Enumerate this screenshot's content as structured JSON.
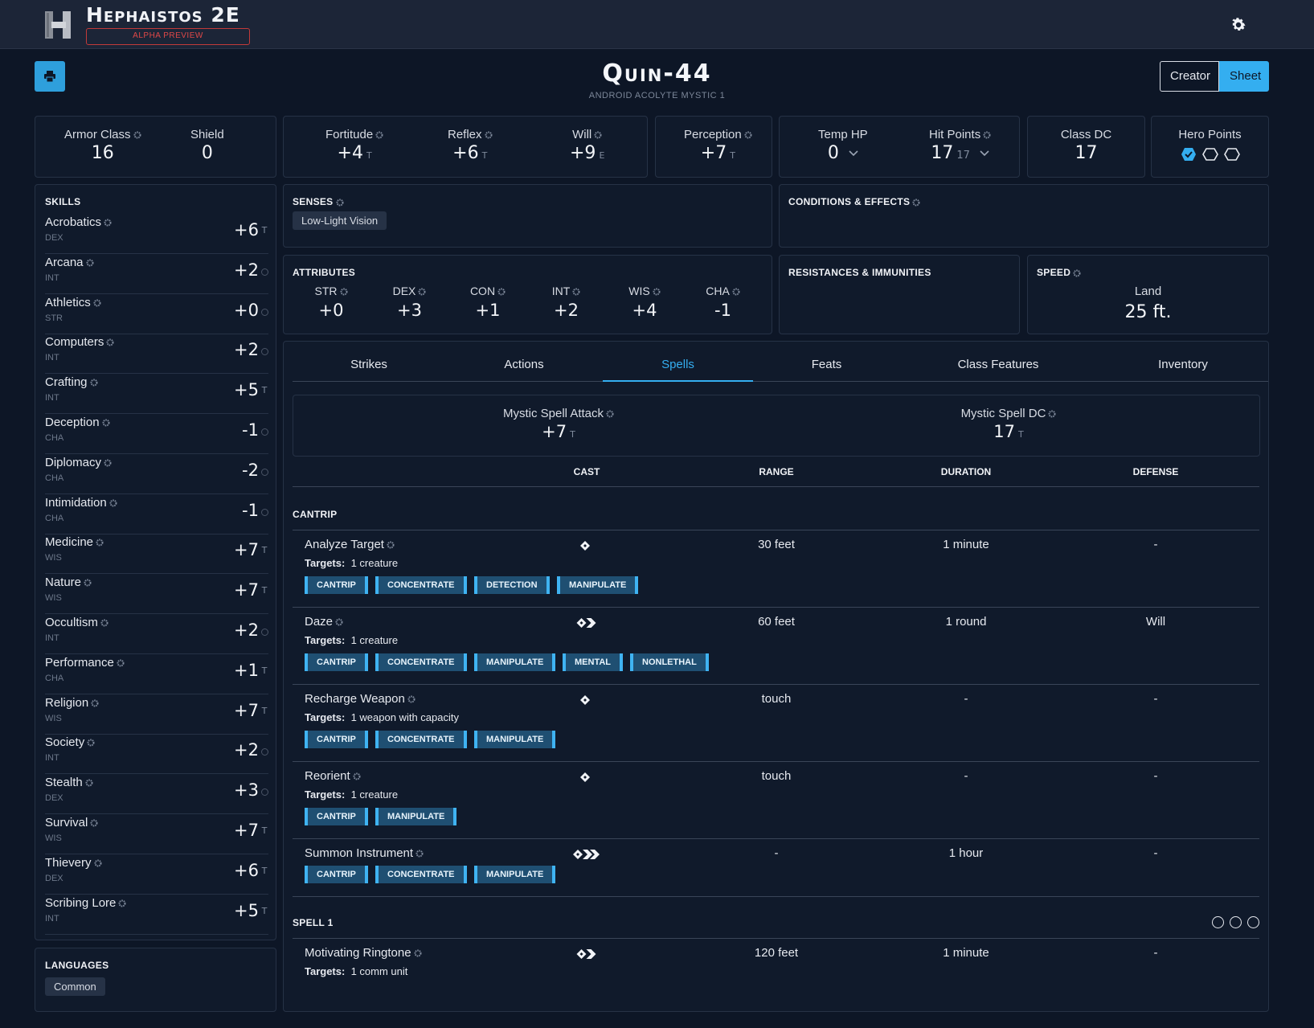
{
  "app": {
    "title": "Hephaistos 2E",
    "badge": "ALPHA PREVIEW"
  },
  "header": {
    "name": "Quin-44",
    "subtitle": "ANDROID ACOLYTE MYSTIC 1",
    "mode_creator": "Creator",
    "mode_sheet": "Sheet"
  },
  "defense": {
    "armor_class_label": "Armor Class",
    "armor_class": "16",
    "shield_label": "Shield",
    "shield": "0"
  },
  "saves": [
    {
      "label": "Fortitude",
      "value": "+4",
      "prof": "T"
    },
    {
      "label": "Reflex",
      "value": "+6",
      "prof": "T"
    },
    {
      "label": "Will",
      "value": "+9",
      "prof": "E"
    }
  ],
  "perception": {
    "label": "Perception",
    "value": "+7",
    "prof": "T"
  },
  "hp": {
    "temp_label": "Temp HP",
    "temp": "0",
    "hp_label": "Hit Points",
    "hp": "17",
    "hp_max": "17"
  },
  "class_dc": {
    "label": "Class DC",
    "value": "17"
  },
  "hero_points": {
    "label": "Hero Points",
    "used": 1,
    "total": 3
  },
  "skills": {
    "title": "SKILLS",
    "items": [
      {
        "name": "Acrobatics",
        "attr": "DEX",
        "value": "+6",
        "prof": "T"
      },
      {
        "name": "Arcana",
        "attr": "INT",
        "value": "+2",
        "prof": ""
      },
      {
        "name": "Athletics",
        "attr": "STR",
        "value": "+0",
        "prof": ""
      },
      {
        "name": "Computers",
        "attr": "INT",
        "value": "+2",
        "prof": ""
      },
      {
        "name": "Crafting",
        "attr": "INT",
        "value": "+5",
        "prof": "T"
      },
      {
        "name": "Deception",
        "attr": "CHA",
        "value": "-1",
        "prof": ""
      },
      {
        "name": "Diplomacy",
        "attr": "CHA",
        "value": "-2",
        "prof": ""
      },
      {
        "name": "Intimidation",
        "attr": "CHA",
        "value": "-1",
        "prof": ""
      },
      {
        "name": "Medicine",
        "attr": "WIS",
        "value": "+7",
        "prof": "T"
      },
      {
        "name": "Nature",
        "attr": "WIS",
        "value": "+7",
        "prof": "T"
      },
      {
        "name": "Occultism",
        "attr": "INT",
        "value": "+2",
        "prof": ""
      },
      {
        "name": "Performance",
        "attr": "CHA",
        "value": "+1",
        "prof": "T"
      },
      {
        "name": "Religion",
        "attr": "WIS",
        "value": "+7",
        "prof": "T"
      },
      {
        "name": "Society",
        "attr": "INT",
        "value": "+2",
        "prof": ""
      },
      {
        "name": "Stealth",
        "attr": "DEX",
        "value": "+3",
        "prof": ""
      },
      {
        "name": "Survival",
        "attr": "WIS",
        "value": "+7",
        "prof": "T"
      },
      {
        "name": "Thievery",
        "attr": "DEX",
        "value": "+6",
        "prof": "T"
      },
      {
        "name": "Scribing Lore",
        "attr": "INT",
        "value": "+5",
        "prof": "T"
      }
    ]
  },
  "languages": {
    "title": "LANGUAGES",
    "items": [
      "Common"
    ]
  },
  "senses": {
    "title": "SENSES",
    "items": [
      "Low-Light Vision"
    ]
  },
  "conditions": {
    "title": "CONDITIONS & EFFECTS"
  },
  "attributes": {
    "title": "ATTRIBUTES",
    "items": [
      {
        "label": "STR",
        "value": "+0"
      },
      {
        "label": "DEX",
        "value": "+3"
      },
      {
        "label": "CON",
        "value": "+1"
      },
      {
        "label": "INT",
        "value": "+2"
      },
      {
        "label": "WIS",
        "value": "+4"
      },
      {
        "label": "CHA",
        "value": "-1"
      }
    ]
  },
  "resistances": {
    "title": "RESISTANCES & IMMUNITIES"
  },
  "speed": {
    "title": "SPEED",
    "label": "Land",
    "value": "25 ft."
  },
  "tabs": [
    "Strikes",
    "Actions",
    "Spells",
    "Feats",
    "Class Features",
    "Inventory"
  ],
  "active_tab": "Spells",
  "spellcasting": {
    "attack_label": "Mystic Spell Attack",
    "attack": "+7",
    "attack_prof": "T",
    "dc_label": "Mystic Spell DC",
    "dc": "17",
    "dc_prof": "T",
    "columns": [
      "CAST",
      "RANGE",
      "DURATION",
      "DEFENSE"
    ]
  },
  "spell_groups": [
    {
      "title": "CANTRIP",
      "spells": [
        {
          "name": "Analyze Target",
          "actions": 1,
          "range": "30 feet",
          "duration": "1 minute",
          "defense": "-",
          "targets_label": "Targets:",
          "targets": "1 creature",
          "traits": [
            "CANTRIP",
            "CONCENTRATE",
            "DETECTION",
            "MANIPULATE"
          ]
        },
        {
          "name": "Daze",
          "actions": 2,
          "range": "60 feet",
          "duration": "1 round",
          "defense": "Will",
          "targets_label": "Targets:",
          "targets": "1 creature",
          "traits": [
            "CANTRIP",
            "CONCENTRATE",
            "MANIPULATE",
            "MENTAL",
            "NONLETHAL"
          ]
        },
        {
          "name": "Recharge Weapon",
          "actions": 1,
          "range": "touch",
          "duration": "-",
          "defense": "-",
          "targets_label": "Targets:",
          "targets": "1 weapon with capacity",
          "traits": [
            "CANTRIP",
            "CONCENTRATE",
            "MANIPULATE"
          ]
        },
        {
          "name": "Reorient",
          "actions": 1,
          "range": "touch",
          "duration": "-",
          "defense": "-",
          "targets_label": "Targets:",
          "targets": "1 creature",
          "traits": [
            "CANTRIP",
            "MANIPULATE"
          ]
        },
        {
          "name": "Summon Instrument",
          "actions": 3,
          "range": "-",
          "duration": "1 hour",
          "defense": "-",
          "traits": [
            "CANTRIP",
            "CONCENTRATE",
            "MANIPULATE"
          ]
        }
      ]
    },
    {
      "title": "SPELL 1",
      "slots": 3,
      "spells": [
        {
          "name": "Motivating Ringtone",
          "actions": 2,
          "range": "120 feet",
          "duration": "1 minute",
          "defense": "-",
          "targets_label": "Targets:",
          "targets": "1 comm unit"
        }
      ]
    }
  ],
  "colors": {
    "accent": "#34aef0",
    "panel": "#101a2b",
    "background": "#0d1626",
    "trait_bg": "#1f4f72",
    "alert": "#e04848"
  }
}
